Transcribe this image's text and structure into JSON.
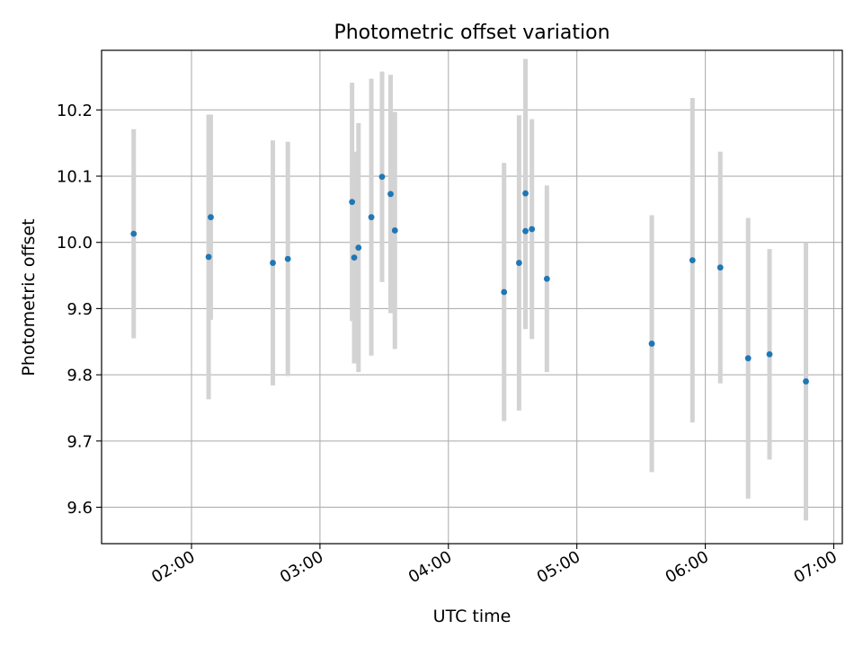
{
  "chart_data": {
    "type": "scatter",
    "title": "Photometric offset variation",
    "xlabel": "UTC time",
    "ylabel": "Photometric offset",
    "x_tick_labels": [
      "02:00",
      "03:00",
      "04:00",
      "05:00",
      "06:00",
      "07:00"
    ],
    "y_ticks": [
      9.6,
      9.7,
      9.8,
      9.9,
      10.0,
      10.1,
      10.2
    ],
    "y_tick_labels": [
      "9.6",
      "9.7",
      "9.8",
      "9.9",
      "10.0",
      "10.1",
      "10.2"
    ],
    "xlim": [
      "01:18",
      "07:04"
    ],
    "ylim": [
      9.545,
      10.29
    ],
    "grid": true,
    "colors": {
      "point": "#1f77b4",
      "errorbar": "#d3d3d3",
      "grid": "#b0b0b0"
    },
    "points": [
      {
        "t": "01:33",
        "y": 10.013,
        "err": 0.158
      },
      {
        "t": "02:08",
        "y": 9.978,
        "err": 0.215
      },
      {
        "t": "02:09",
        "y": 10.038,
        "err": 0.155
      },
      {
        "t": "02:38",
        "y": 9.969,
        "err": 0.185
      },
      {
        "t": "02:45",
        "y": 9.975,
        "err": 0.177
      },
      {
        "t": "03:15",
        "y": 10.061,
        "err": 0.18
      },
      {
        "t": "03:16",
        "y": 9.977,
        "err": 0.16
      },
      {
        "t": "03:18",
        "y": 9.992,
        "err": 0.188
      },
      {
        "t": "03:24",
        "y": 10.038,
        "err": 0.209
      },
      {
        "t": "03:29",
        "y": 10.099,
        "err": 0.159
      },
      {
        "t": "03:33",
        "y": 10.073,
        "err": 0.18
      },
      {
        "t": "03:35",
        "y": 10.018,
        "err": 0.179
      },
      {
        "t": "04:26",
        "y": 9.925,
        "err": 0.195
      },
      {
        "t": "04:33",
        "y": 9.969,
        "err": 0.223
      },
      {
        "t": "04:36",
        "y": 10.074,
        "err": 0.203
      },
      {
        "t": "04:36",
        "y": 10.017,
        "err": 0.148
      },
      {
        "t": "04:39",
        "y": 10.02,
        "err": 0.166
      },
      {
        "t": "04:46",
        "y": 9.945,
        "err": 0.141
      },
      {
        "t": "05:35",
        "y": 9.847,
        "err": 0.194
      },
      {
        "t": "05:54",
        "y": 9.973,
        "err": 0.245
      },
      {
        "t": "06:07",
        "y": 9.962,
        "err": 0.175
      },
      {
        "t": "06:20",
        "y": 9.825,
        "err": 0.212
      },
      {
        "t": "06:30",
        "y": 9.831,
        "err": 0.159
      },
      {
        "t": "06:47",
        "y": 9.79,
        "err": 0.21
      }
    ]
  }
}
